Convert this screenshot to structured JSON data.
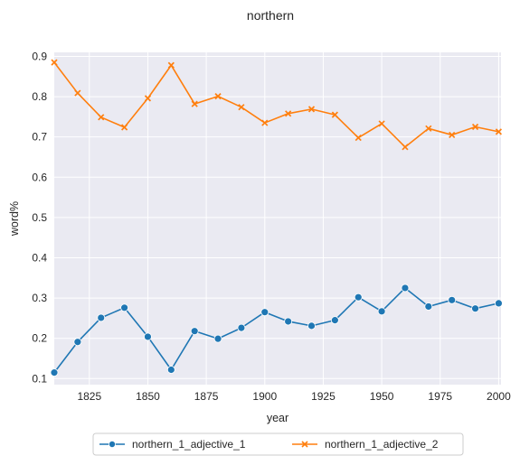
{
  "chart_data": {
    "type": "line",
    "title": "northern",
    "xlabel": "year",
    "ylabel": "word%",
    "xlim": [
      1810,
      2001
    ],
    "ylim": [
      0.085,
      0.91
    ],
    "xticks": [
      "1825",
      "1850",
      "1875",
      "1900",
      "1925",
      "1950",
      "1975",
      "2000"
    ],
    "yticks": [
      "0.1",
      "0.2",
      "0.3",
      "0.4",
      "0.5",
      "0.6",
      "0.7",
      "0.8",
      "0.9"
    ],
    "grid": true,
    "legend_position": "bottom-center",
    "x": [
      1810,
      1820,
      1830,
      1840,
      1850,
      1860,
      1870,
      1880,
      1890,
      1900,
      1910,
      1920,
      1930,
      1940,
      1950,
      1960,
      1970,
      1980,
      1990,
      2000
    ],
    "series": [
      {
        "name": "northern_1_adjective_1",
        "color": "#1f77b4",
        "marker": "circle",
        "values": [
          0.115,
          0.191,
          0.251,
          0.276,
          0.204,
          0.122,
          0.218,
          0.199,
          0.226,
          0.265,
          0.242,
          0.231,
          0.245,
          0.302,
          0.267,
          0.325,
          0.279,
          0.295,
          0.274,
          0.287
        ]
      },
      {
        "name": "northern_1_adjective_2",
        "color": "#ff7f0e",
        "marker": "x",
        "values": [
          0.885,
          0.809,
          0.749,
          0.724,
          0.796,
          0.878,
          0.782,
          0.801,
          0.774,
          0.735,
          0.758,
          0.769,
          0.755,
          0.698,
          0.733,
          0.675,
          0.721,
          0.705,
          0.725,
          0.713
        ]
      }
    ]
  }
}
